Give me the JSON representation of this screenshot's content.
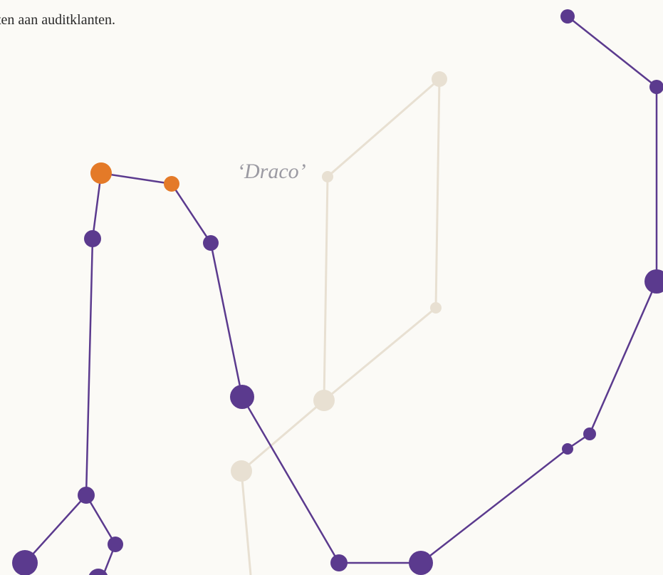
{
  "text": {
    "intro": "ten aan auditklanten.",
    "label": "‘Draco’"
  }
}
